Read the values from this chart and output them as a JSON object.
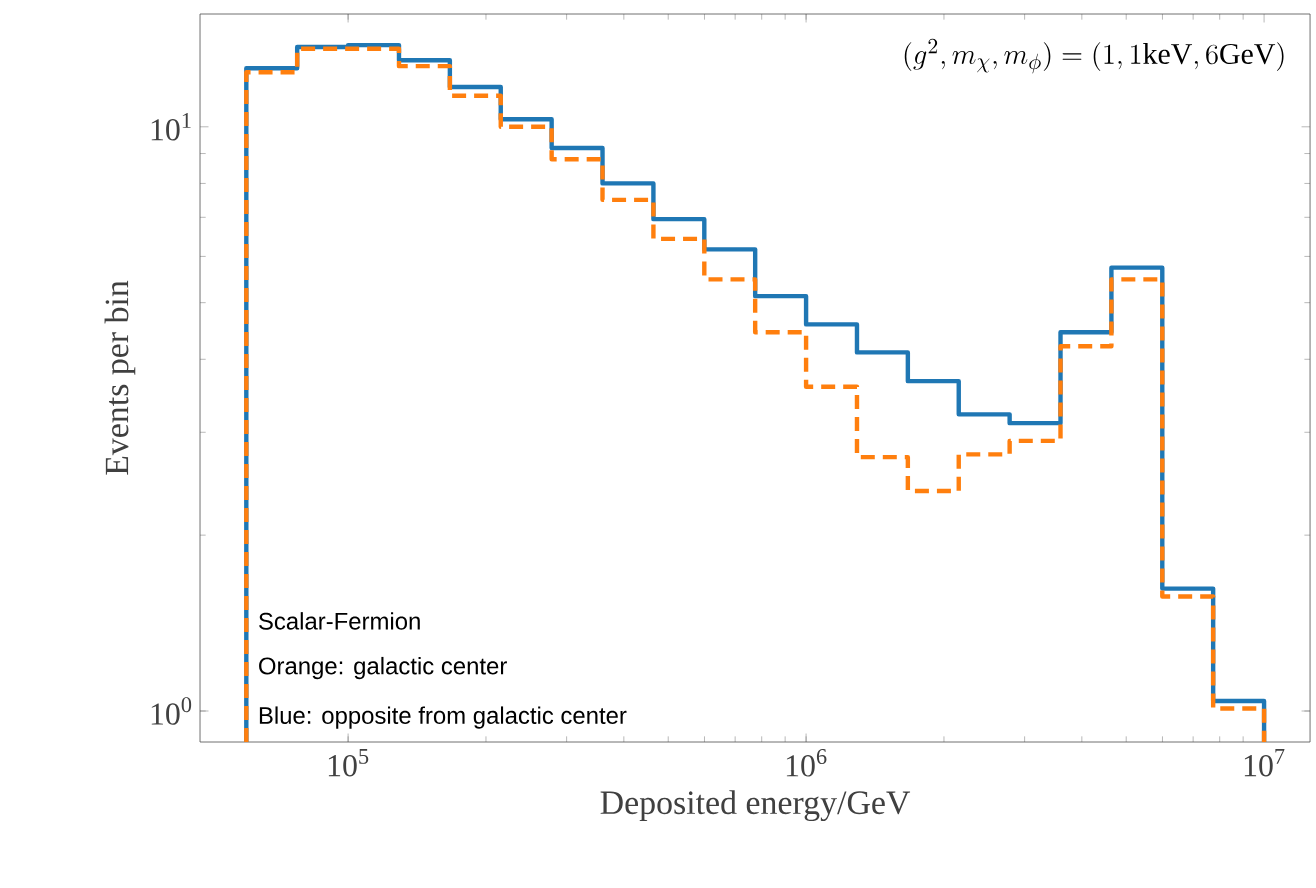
{
  "chart_data": {
    "type": "histogram",
    "xlabel": "Deposited energy/GeV",
    "ylabel": "Events per bin",
    "log": "xy",
    "bins": [
      59948,
      77426,
      100000,
      129155,
      166810,
      215443,
      278256,
      359381,
      464159,
      599484,
      774264,
      1000000,
      1291550,
      1668101,
      2154435,
      2782559,
      3593814,
      4641589,
      5994843,
      7742637,
      10000000
    ],
    "series": [
      {
        "color": "#1f77b4",
        "line_style": "solid",
        "values": [
          12.6,
          13.7,
          13.8,
          13.0,
          11.7,
          10.3,
          9.2,
          8.0,
          6.95,
          6.17,
          5.13,
          4.59,
          4.11,
          3.67,
          3.22,
          3.11,
          4.45,
          5.74,
          1.62,
          1.04
        ]
      },
      {
        "color": "#ff7f0e",
        "line_style": "dashed",
        "values": [
          12.4,
          13.6,
          13.6,
          12.7,
          11.3,
          10.0,
          8.8,
          7.5,
          6.43,
          5.48,
          4.45,
          3.59,
          2.72,
          2.38,
          2.75,
          2.9,
          4.21,
          5.48,
          1.57,
          1.01
        ]
      }
    ],
    "xlim": [
      47500,
      12600000
    ],
    "ylim": [
      0.885,
      15.6
    ],
    "xticks": [
      {
        "value": 100000,
        "label": "10$^{5}$"
      },
      {
        "value": 1000000,
        "label": "10$^{6}$"
      },
      {
        "value": 10000000,
        "label": "10$^{7}$"
      }
    ],
    "yticks": [
      {
        "value": 1,
        "label": "10$^{0}$"
      },
      {
        "value": 10,
        "label": "10$^{1}$"
      }
    ],
    "annotations": [
      "(g^2, m_\\chi, m_\\phi) = (1, 1\\mathrm{keV}, 6\\mathrm{GeV})",
      "Scalar-Fermion",
      "Orange: galactic center",
      "Blue: opposite from galactic center"
    ]
  }
}
